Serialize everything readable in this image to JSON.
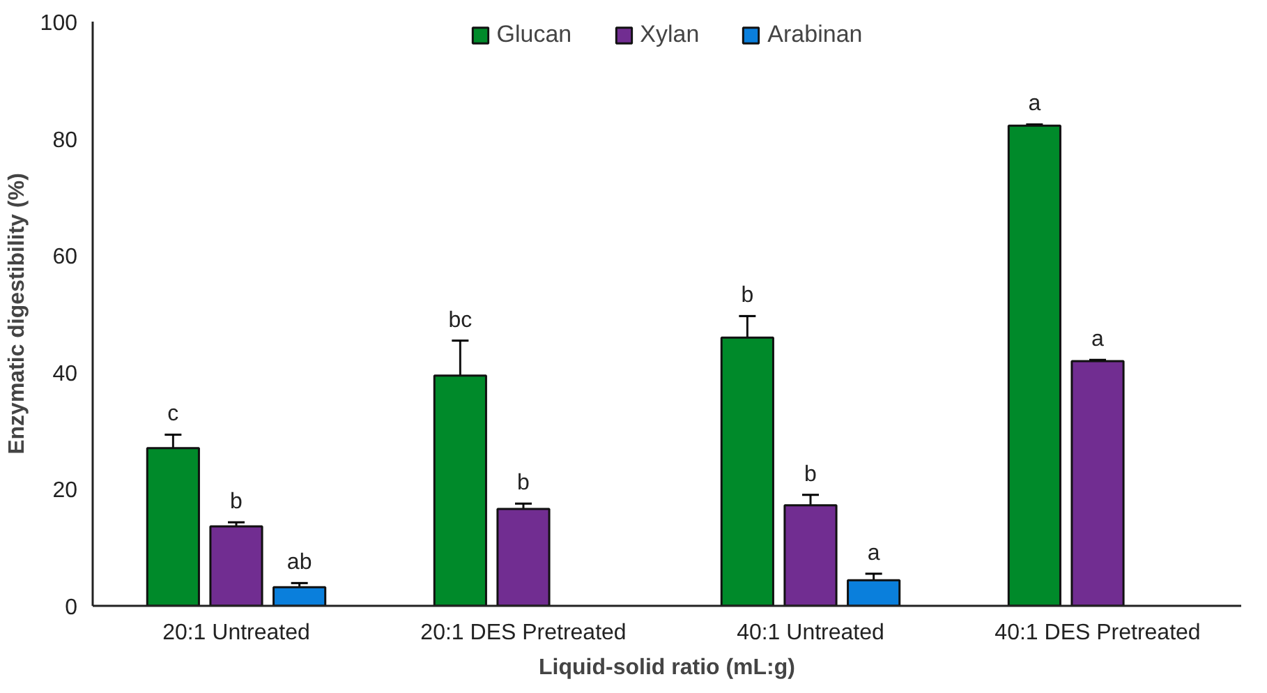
{
  "chart_data": {
    "type": "bar",
    "xlabel": "Liquid-solid ratio (mL:g)",
    "ylabel": "Enzymatic digestibility (%)",
    "categories": [
      "20:1 Untreated",
      "20:1 DES Pretreated",
      "40:1 Untreated",
      "40:1 DES Pretreated"
    ],
    "series": [
      {
        "name": "Glucan",
        "color": "#008a2a",
        "values": [
          27.0,
          39.4,
          45.9,
          82.2
        ],
        "errors": [
          2.3,
          6.0,
          3.7,
          0.2
        ],
        "value_labels": [
          "c",
          "bc",
          "b",
          "a"
        ]
      },
      {
        "name": "Xylan",
        "color": "#712d91",
        "values": [
          13.6,
          16.6,
          17.2,
          41.9
        ],
        "errors": [
          0.7,
          0.9,
          1.8,
          0.2
        ],
        "value_labels": [
          "b",
          "b",
          "b",
          "a"
        ]
      },
      {
        "name": "Arabinan",
        "color": "#0a7fdc",
        "values": [
          3.2,
          null,
          4.4,
          null
        ],
        "errors": [
          0.7,
          null,
          1.1,
          null
        ],
        "value_labels": [
          "ab",
          null,
          "a",
          null
        ]
      }
    ],
    "ylim": [
      0,
      100
    ],
    "yticks": [
      0,
      20,
      40,
      60,
      80,
      100
    ],
    "grid": false,
    "legend": "top"
  }
}
